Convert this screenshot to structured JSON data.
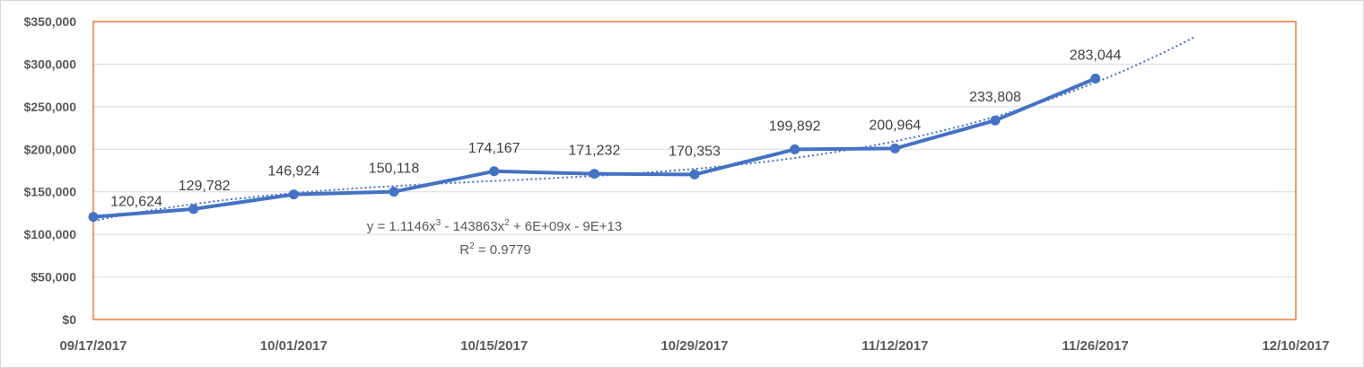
{
  "chart_data": {
    "type": "line",
    "title": "",
    "xlabel": "",
    "ylabel": "",
    "x_tick_labels": [
      "09/17/2017",
      "10/01/2017",
      "10/15/2017",
      "10/29/2017",
      "11/12/2017",
      "11/26/2017",
      "12/10/2017"
    ],
    "y_tick_labels": [
      "$0",
      "$50,000",
      "$100,000",
      "$150,000",
      "$200,000",
      "$250,000",
      "$300,000",
      "$350,000"
    ],
    "xlim": [
      "2017-09-17",
      "2017-12-10"
    ],
    "ylim": [
      0,
      350000
    ],
    "grid": true,
    "legend": "none",
    "series": [
      {
        "x": [
          "2017-09-17",
          "2017-09-24",
          "2017-10-01",
          "2017-10-08",
          "2017-10-15",
          "2017-10-22",
          "2017-10-29",
          "2017-11-05",
          "2017-11-12",
          "2017-11-19",
          "2017-11-26"
        ],
        "values": [
          120624,
          129782,
          146924,
          150118,
          174167,
          171232,
          170353,
          199892,
          200964,
          233808,
          283044
        ],
        "data_labels": [
          "120,624",
          "129,782",
          "146,924",
          "150,118",
          "174,167",
          "171,232",
          "170,353",
          "199,892",
          "200,964",
          "233,808",
          "283,044"
        ],
        "color": "#4472c4"
      }
    ],
    "trendline": {
      "type": "polynomial",
      "order": 3,
      "equation_prefix": "y = 1.1146x",
      "equation_sup1": "3",
      "equation_mid": " - 143863x",
      "equation_sup2": "2",
      "equation_suffix": " + 6E+09x - 9E+13",
      "r2_prefix": "R",
      "r2_sup": "2",
      "r2_suffix": " = 0.9779",
      "forecast_end": "2017-12-03",
      "color": "#4472c4"
    },
    "colors": {
      "plot_border": "#ed7d31",
      "gridline": "#d9d9d9",
      "axis_text": "#595959"
    }
  }
}
